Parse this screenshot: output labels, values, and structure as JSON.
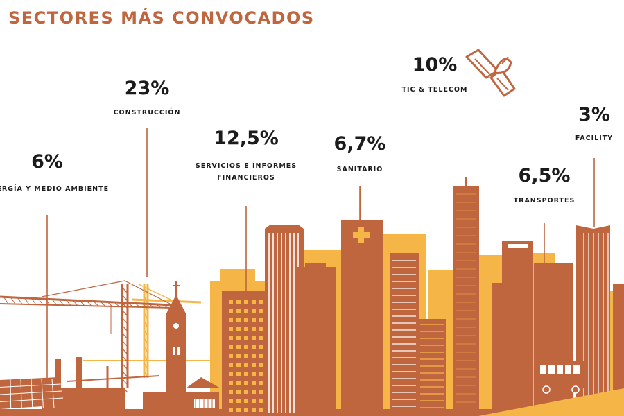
{
  "header": {
    "title": "SECTORES MÁS CONVOCADOS"
  },
  "colors": {
    "accent": "#c0663f",
    "secondary": "#f5b647",
    "text": "#1b1b1b",
    "background": "#ffffff"
  },
  "icons": [
    "satellite-icon",
    "medical-cross-icon",
    "bus-icon"
  ],
  "chart_data": {
    "type": "bar",
    "title": "SECTORES MÁS CONVOCADOS",
    "unit": "%",
    "categories": [
      "ENERGÍA Y MEDIO AMBIENTE",
      "CONSTRUCCIÓN",
      "SERVICIOS E INFORMES FINANCIEROS",
      "SANITARIO",
      "TIC & TELECOM",
      "TRANSPORTES",
      "FACILITY"
    ],
    "values": [
      6,
      23,
      12.5,
      6.7,
      10,
      6.5,
      3
    ],
    "value_labels": [
      "6%",
      "23%",
      "12,5%",
      "6,7%",
      "10%",
      "6,5%",
      "3%"
    ],
    "label_lines": [
      [
        "ENERGÍA Y MEDIO AMBIENTE"
      ],
      [
        "CONSTRUCCIÓN"
      ],
      [
        "SERVICIOS E INFORMES",
        "FINANCIEROS"
      ],
      [
        "SANITARIO"
      ],
      [
        "TIC & TELECOM"
      ],
      [
        "TRANSPORTES"
      ],
      [
        "FACILITY"
      ]
    ],
    "grid": false,
    "legend": "none"
  }
}
